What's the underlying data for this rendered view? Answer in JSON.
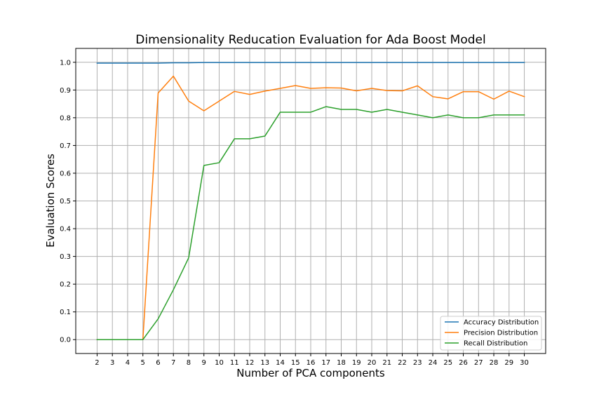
{
  "chart_data": {
    "type": "line",
    "title": "Dimensionality Reducation Evaluation for Ada Boost Model",
    "xlabel": "Number of PCA components",
    "ylabel": "Evaluation Scores",
    "x": [
      2,
      3,
      4,
      5,
      6,
      7,
      8,
      9,
      10,
      11,
      12,
      13,
      14,
      15,
      16,
      17,
      18,
      19,
      20,
      21,
      22,
      23,
      24,
      25,
      26,
      27,
      28,
      29,
      30
    ],
    "xticks": [
      "2",
      "3",
      "4",
      "5",
      "6",
      "7",
      "8",
      "9",
      "10",
      "11",
      "12",
      "13",
      "14",
      "15",
      "16",
      "17",
      "18",
      "19",
      "20",
      "21",
      "22",
      "23",
      "24",
      "25",
      "26",
      "27",
      "28",
      "29",
      "30"
    ],
    "yticks": [
      "0.0",
      "0.1",
      "0.2",
      "0.3",
      "0.4",
      "0.5",
      "0.6",
      "0.7",
      "0.8",
      "0.9",
      "1.0"
    ],
    "xlim": [
      0.6,
      31.4
    ],
    "ylim": [
      -0.05,
      1.05
    ],
    "grid": true,
    "legend_position": "bottom-right",
    "series": [
      {
        "name": "Accuracy Distribution",
        "color": "#1f77b4",
        "values": [
          0.997,
          0.997,
          0.997,
          0.997,
          0.997,
          0.998,
          0.998,
          0.999,
          0.999,
          0.999,
          0.999,
          0.999,
          0.999,
          0.999,
          0.999,
          0.999,
          0.999,
          0.999,
          0.999,
          0.999,
          0.999,
          0.999,
          0.999,
          0.999,
          0.999,
          0.999,
          0.999,
          0.999,
          0.999
        ]
      },
      {
        "name": "Precision Distribution",
        "color": "#ff7f0e",
        "values": [
          0.0,
          0.0,
          0.0,
          0.0,
          0.889,
          0.95,
          0.86,
          0.825,
          0.86,
          0.895,
          0.884,
          0.896,
          0.906,
          0.916,
          0.906,
          0.908,
          0.907,
          0.897,
          0.906,
          0.898,
          0.897,
          0.915,
          0.876,
          0.868,
          0.894,
          0.894,
          0.867,
          0.896,
          0.876
        ]
      },
      {
        "name": "Recall Distribution",
        "color": "#2ca02c",
        "values": [
          0.0,
          0.0,
          0.0,
          0.0,
          0.075,
          0.18,
          0.295,
          0.628,
          0.638,
          0.724,
          0.724,
          0.734,
          0.82,
          0.82,
          0.82,
          0.84,
          0.83,
          0.83,
          0.82,
          0.83,
          0.82,
          0.81,
          0.8,
          0.81,
          0.8,
          0.8,
          0.81,
          0.81,
          0.81
        ]
      }
    ]
  }
}
